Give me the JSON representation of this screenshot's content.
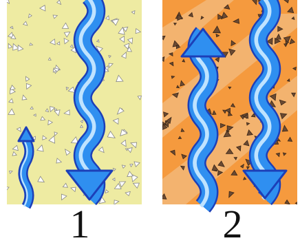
{
  "panels": [
    {
      "label": "1"
    },
    {
      "label": "2"
    }
  ]
}
